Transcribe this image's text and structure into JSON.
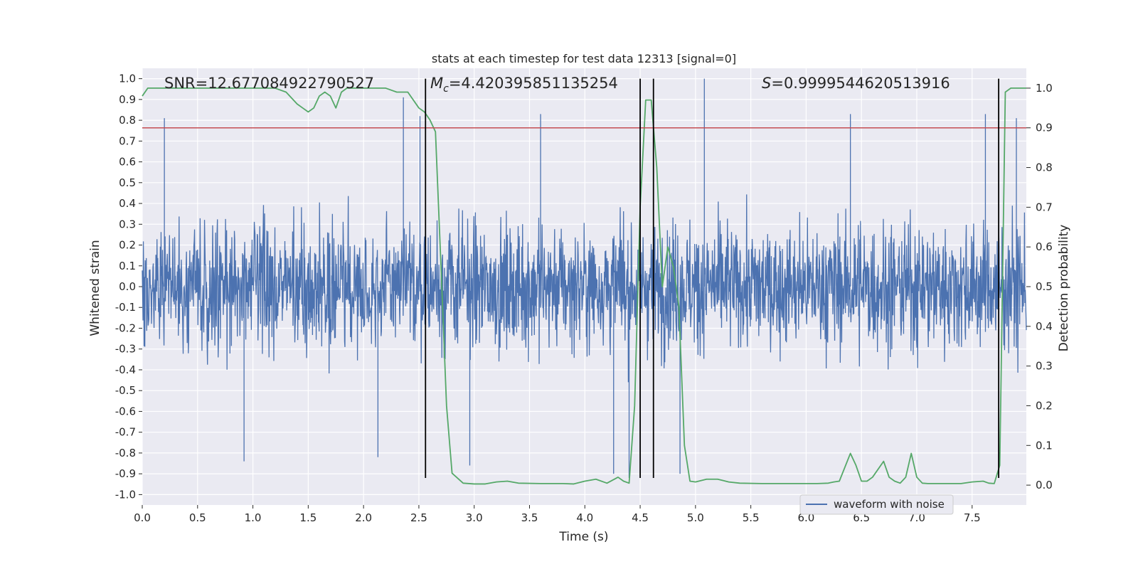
{
  "chart_data": {
    "type": "line",
    "title": "stats at each timestep for test data 12313 [signal=0]",
    "xlabel": "Time (s)",
    "ylabel": "Whitened strain",
    "y2label": "Detection probability",
    "xlim": [
      0.0,
      7.99
    ],
    "ylim": [
      -1.05,
      1.05
    ],
    "y2lim": [
      -0.05,
      1.05
    ],
    "xticks": [
      "0.0",
      "0.5",
      "1.0",
      "1.5",
      "2.0",
      "2.5",
      "3.0",
      "3.5",
      "4.0",
      "4.5",
      "5.0",
      "5.5",
      "6.0",
      "6.5",
      "7.0",
      "7.5"
    ],
    "xtick_values": [
      0.0,
      0.5,
      1.0,
      1.5,
      2.0,
      2.5,
      3.0,
      3.5,
      4.0,
      4.5,
      5.0,
      5.5,
      6.0,
      6.5,
      7.0,
      7.5
    ],
    "yticks": [
      "-1.0",
      "-0.9",
      "-0.8",
      "-0.7",
      "-0.6",
      "-0.5",
      "-0.4",
      "-0.3",
      "-0.2",
      "-0.1",
      "0.0",
      "0.1",
      "0.2",
      "0.3",
      "0.4",
      "0.5",
      "0.6",
      "0.7",
      "0.8",
      "0.9",
      "1.0"
    ],
    "ytick_values": [
      -1.0,
      -0.9,
      -0.8,
      -0.7,
      -0.6,
      -0.5,
      -0.4,
      -0.3,
      -0.2,
      -0.1,
      0.0,
      0.1,
      0.2,
      0.3,
      0.4,
      0.5,
      0.6,
      0.7,
      0.8,
      0.9,
      1.0
    ],
    "y2ticks": [
      "0.0",
      "0.1",
      "0.2",
      "0.3",
      "0.4",
      "0.5",
      "0.6",
      "0.7",
      "0.8",
      "0.9",
      "1.0"
    ],
    "y2tick_values": [
      0.0,
      0.1,
      0.2,
      0.3,
      0.4,
      0.5,
      0.6,
      0.7,
      0.8,
      0.9,
      1.0
    ],
    "annotations": {
      "snr": "SNR=12.677084922790527",
      "mc_symbol": "M",
      "mc_sub": "c",
      "mc_value": "=4.420395851135254",
      "s_symbol": "S",
      "s_value": "=0.9999544620513916"
    },
    "legend": {
      "label": "waveform with noise",
      "placement": "lower-right"
    },
    "colors": {
      "waveform": "#4c72b0",
      "probability": "#55a868",
      "threshold": "#c44e52",
      "vline": "#000000",
      "background": "#eaeaf2",
      "grid": "#ffffff"
    },
    "threshold_y2": 0.9,
    "vertical_lines_x": [
      2.56,
      4.5,
      4.62,
      7.74
    ],
    "waveform": {
      "name": "waveform with noise",
      "typical_envelope": [
        -0.5,
        0.5
      ],
      "peak_range": [
        -0.92,
        1.0
      ],
      "peaks": [
        {
          "x": 0.2,
          "y": 0.81
        },
        {
          "x": 2.36,
          "y": 0.91
        },
        {
          "x": 2.51,
          "y": 0.82
        },
        {
          "x": 3.6,
          "y": 0.83
        },
        {
          "x": 5.08,
          "y": 1.0
        },
        {
          "x": 6.4,
          "y": 0.83
        },
        {
          "x": 7.62,
          "y": 0.83
        },
        {
          "x": 7.9,
          "y": 0.81
        },
        {
          "x": 0.92,
          "y": -0.84
        },
        {
          "x": 2.13,
          "y": -0.82
        },
        {
          "x": 2.96,
          "y": -0.86
        },
        {
          "x": 4.26,
          "y": -0.9
        },
        {
          "x": 4.4,
          "y": -0.92
        },
        {
          "x": 4.86,
          "y": -0.9
        }
      ]
    },
    "detection_probability": {
      "x": [
        0.0,
        0.05,
        0.1,
        0.2,
        0.4,
        0.6,
        0.8,
        1.0,
        1.1,
        1.2,
        1.3,
        1.4,
        1.45,
        1.5,
        1.55,
        1.6,
        1.65,
        1.7,
        1.75,
        1.8,
        1.85,
        1.9,
        2.0,
        2.1,
        2.2,
        2.3,
        2.4,
        2.5,
        2.55,
        2.6,
        2.65,
        2.7,
        2.75,
        2.8,
        2.9,
        3.0,
        3.1,
        3.2,
        3.3,
        3.4,
        3.6,
        3.8,
        3.9,
        4.0,
        4.1,
        4.2,
        4.3,
        4.35,
        4.4,
        4.45,
        4.5,
        4.55,
        4.6,
        4.65,
        4.7,
        4.75,
        4.8,
        4.85,
        4.9,
        4.95,
        5.0,
        5.1,
        5.2,
        5.3,
        5.4,
        5.6,
        5.8,
        6.0,
        6.1,
        6.2,
        6.25,
        6.3,
        6.4,
        6.45,
        6.5,
        6.55,
        6.6,
        6.7,
        6.75,
        6.8,
        6.85,
        6.9,
        6.95,
        7.0,
        7.05,
        7.1,
        7.2,
        7.3,
        7.4,
        7.5,
        7.6,
        7.65,
        7.7,
        7.75,
        7.8,
        7.85,
        7.9,
        7.99
      ],
      "y": [
        0.98,
        1.0,
        1.0,
        1.0,
        1.0,
        1.0,
        1.0,
        1.0,
        1.0,
        1.0,
        0.99,
        0.96,
        0.95,
        0.94,
        0.95,
        0.98,
        0.99,
        0.98,
        0.95,
        0.99,
        1.0,
        1.0,
        1.0,
        1.0,
        1.0,
        0.99,
        0.99,
        0.95,
        0.94,
        0.92,
        0.89,
        0.55,
        0.2,
        0.03,
        0.005,
        0.003,
        0.003,
        0.008,
        0.01,
        0.005,
        0.004,
        0.004,
        0.003,
        0.01,
        0.015,
        0.005,
        0.02,
        0.01,
        0.005,
        0.2,
        0.7,
        0.97,
        0.97,
        0.8,
        0.5,
        0.6,
        0.55,
        0.45,
        0.1,
        0.01,
        0.008,
        0.015,
        0.015,
        0.008,
        0.005,
        0.004,
        0.004,
        0.004,
        0.004,
        0.005,
        0.008,
        0.01,
        0.08,
        0.05,
        0.01,
        0.01,
        0.02,
        0.06,
        0.02,
        0.01,
        0.005,
        0.02,
        0.08,
        0.02,
        0.005,
        0.004,
        0.004,
        0.004,
        0.004,
        0.008,
        0.01,
        0.005,
        0.004,
        0.05,
        0.99,
        1.0,
        1.0,
        1.0
      ]
    }
  }
}
